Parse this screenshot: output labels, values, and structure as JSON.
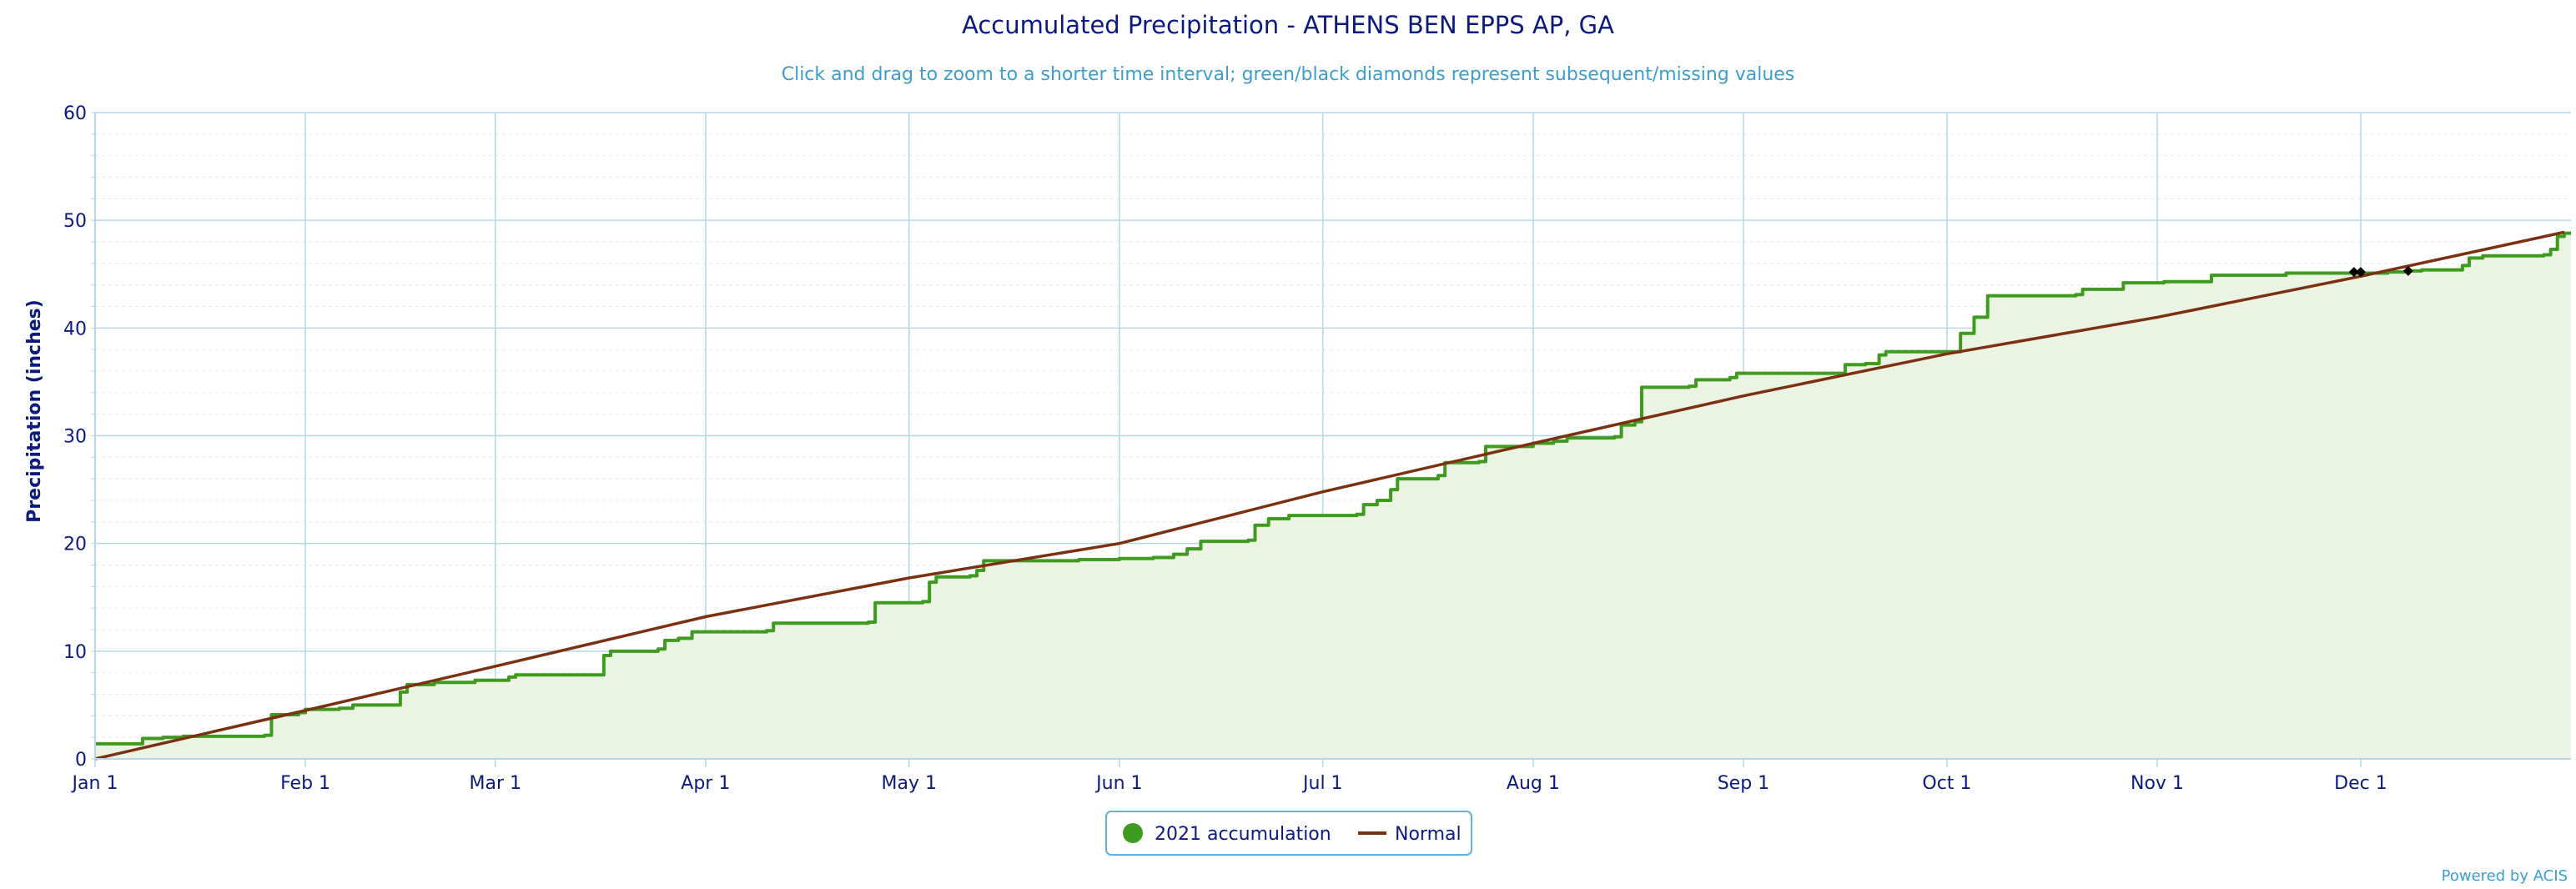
{
  "chart_data": {
    "type": "line",
    "title": "Accumulated Precipitation - ATHENS BEN EPPS AP, GA",
    "subtitle": "Click and drag to zoom to a shorter time interval; green/black diamonds represent subsequent/missing values",
    "ylabel": "Precipitation (inches)",
    "xlabel": "",
    "xlim": [
      "2021-01-01",
      "2021-12-31"
    ],
    "ylim": [
      0,
      60
    ],
    "y_ticks": [
      0,
      10,
      20,
      30,
      40,
      50,
      60
    ],
    "x_ticks": [
      {
        "date": "2021-01-01",
        "label": "Jan 1"
      },
      {
        "date": "2021-02-01",
        "label": "Feb 1"
      },
      {
        "date": "2021-03-01",
        "label": "Mar 1"
      },
      {
        "date": "2021-04-01",
        "label": "Apr 1"
      },
      {
        "date": "2021-05-01",
        "label": "May 1"
      },
      {
        "date": "2021-06-01",
        "label": "Jun 1"
      },
      {
        "date": "2021-07-01",
        "label": "Jul 1"
      },
      {
        "date": "2021-08-01",
        "label": "Aug 1"
      },
      {
        "date": "2021-09-01",
        "label": "Sep 1"
      },
      {
        "date": "2021-10-01",
        "label": "Oct 1"
      },
      {
        "date": "2021-11-01",
        "label": "Nov 1"
      },
      {
        "date": "2021-12-01",
        "label": "Dec 1"
      }
    ],
    "grid": true,
    "legend_position": "bottom-center",
    "series": [
      {
        "name": "2021 accumulation",
        "color": "#3f9b1f",
        "fill": "#ebf4e3",
        "style": "step-area",
        "points": [
          [
            "2021-01-01",
            1.4
          ],
          [
            "2021-01-07",
            1.4
          ],
          [
            "2021-01-08",
            1.9
          ],
          [
            "2021-01-11",
            2.0
          ],
          [
            "2021-01-14",
            2.1
          ],
          [
            "2021-01-26",
            2.2
          ],
          [
            "2021-01-27",
            4.1
          ],
          [
            "2021-01-31",
            4.3
          ],
          [
            "2021-02-01",
            4.6
          ],
          [
            "2021-02-06",
            4.7
          ],
          [
            "2021-02-08",
            5.0
          ],
          [
            "2021-02-13",
            5.0
          ],
          [
            "2021-02-15",
            6.2
          ],
          [
            "2021-02-16",
            6.9
          ],
          [
            "2021-02-20",
            7.1
          ],
          [
            "2021-02-26",
            7.3
          ],
          [
            "2021-03-03",
            7.6
          ],
          [
            "2021-03-04",
            7.8
          ],
          [
            "2021-03-16",
            7.8
          ],
          [
            "2021-03-17",
            9.6
          ],
          [
            "2021-03-18",
            10.0
          ],
          [
            "2021-03-25",
            10.2
          ],
          [
            "2021-03-26",
            11.0
          ],
          [
            "2021-03-28",
            11.2
          ],
          [
            "2021-03-30",
            11.8
          ],
          [
            "2021-04-10",
            11.9
          ],
          [
            "2021-04-11",
            12.6
          ],
          [
            "2021-04-25",
            12.7
          ],
          [
            "2021-04-26",
            14.5
          ],
          [
            "2021-05-03",
            14.6
          ],
          [
            "2021-05-04",
            16.4
          ],
          [
            "2021-05-05",
            16.9
          ],
          [
            "2021-05-10",
            17.0
          ],
          [
            "2021-05-11",
            17.5
          ],
          [
            "2021-05-12",
            18.4
          ],
          [
            "2021-05-26",
            18.5
          ],
          [
            "2021-06-01",
            18.6
          ],
          [
            "2021-06-06",
            18.7
          ],
          [
            "2021-06-09",
            19.0
          ],
          [
            "2021-06-11",
            19.5
          ],
          [
            "2021-06-13",
            20.2
          ],
          [
            "2021-06-20",
            20.3
          ],
          [
            "2021-06-21",
            21.7
          ],
          [
            "2021-06-23",
            22.3
          ],
          [
            "2021-06-26",
            22.6
          ],
          [
            "2021-07-06",
            22.7
          ],
          [
            "2021-07-07",
            23.6
          ],
          [
            "2021-07-09",
            24.0
          ],
          [
            "2021-07-11",
            25.0
          ],
          [
            "2021-07-12",
            26.0
          ],
          [
            "2021-07-18",
            26.3
          ],
          [
            "2021-07-19",
            27.5
          ],
          [
            "2021-07-24",
            27.6
          ],
          [
            "2021-07-25",
            29.0
          ],
          [
            "2021-08-01",
            29.3
          ],
          [
            "2021-08-04",
            29.5
          ],
          [
            "2021-08-06",
            29.8
          ],
          [
            "2021-08-13",
            29.9
          ],
          [
            "2021-08-14",
            31.0
          ],
          [
            "2021-08-16",
            31.3
          ],
          [
            "2021-08-17",
            34.5
          ],
          [
            "2021-08-24",
            34.6
          ],
          [
            "2021-08-25",
            35.2
          ],
          [
            "2021-08-30",
            35.4
          ],
          [
            "2021-08-31",
            35.8
          ],
          [
            "2021-09-15",
            35.8
          ],
          [
            "2021-09-16",
            36.6
          ],
          [
            "2021-09-19",
            36.7
          ],
          [
            "2021-09-21",
            37.5
          ],
          [
            "2021-09-22",
            37.8
          ],
          [
            "2021-10-02",
            37.8
          ],
          [
            "2021-10-03",
            39.5
          ],
          [
            "2021-10-05",
            41.0
          ],
          [
            "2021-10-07",
            43.0
          ],
          [
            "2021-10-20",
            43.1
          ],
          [
            "2021-10-21",
            43.6
          ],
          [
            "2021-10-27",
            44.2
          ],
          [
            "2021-11-02",
            44.3
          ],
          [
            "2021-11-09",
            44.9
          ],
          [
            "2021-11-20",
            45.1
          ],
          [
            "2021-12-05",
            45.2
          ],
          [
            "2021-12-08",
            45.3
          ],
          [
            "2021-12-10",
            45.4
          ],
          [
            "2021-12-16",
            45.8
          ],
          [
            "2021-12-17",
            46.5
          ],
          [
            "2021-12-19",
            46.7
          ],
          [
            "2021-12-28",
            46.8
          ],
          [
            "2021-12-29",
            47.3
          ],
          [
            "2021-12-30",
            48.5
          ],
          [
            "2021-12-31",
            48.8
          ]
        ]
      },
      {
        "name": "Normal",
        "color": "#7b3010",
        "style": "line",
        "points": [
          [
            "2021-01-01",
            0.0
          ],
          [
            "2021-02-01",
            4.5
          ],
          [
            "2021-03-01",
            8.6
          ],
          [
            "2021-04-01",
            13.2
          ],
          [
            "2021-05-01",
            16.8
          ],
          [
            "2021-06-01",
            20.0
          ],
          [
            "2021-07-01",
            24.8
          ],
          [
            "2021-08-01",
            29.3
          ],
          [
            "2021-09-01",
            33.7
          ],
          [
            "2021-10-01",
            37.6
          ],
          [
            "2021-11-01",
            41.0
          ],
          [
            "2021-12-01",
            44.8
          ],
          [
            "2021-12-31",
            48.9
          ]
        ]
      }
    ],
    "missing_markers": [
      {
        "date": "2021-11-30",
        "value": 45.2
      },
      {
        "date": "2021-12-01",
        "value": 45.2
      },
      {
        "date": "2021-12-08",
        "value": 45.3
      }
    ],
    "credit": "Powered by ACIS",
    "colors": {
      "title": "#0d1a7d",
      "subtitle": "#3a9fd0",
      "axis_text": "#0d1a7d",
      "grid": "#b4d7e8",
      "legend_border": "#62b3dc"
    }
  }
}
